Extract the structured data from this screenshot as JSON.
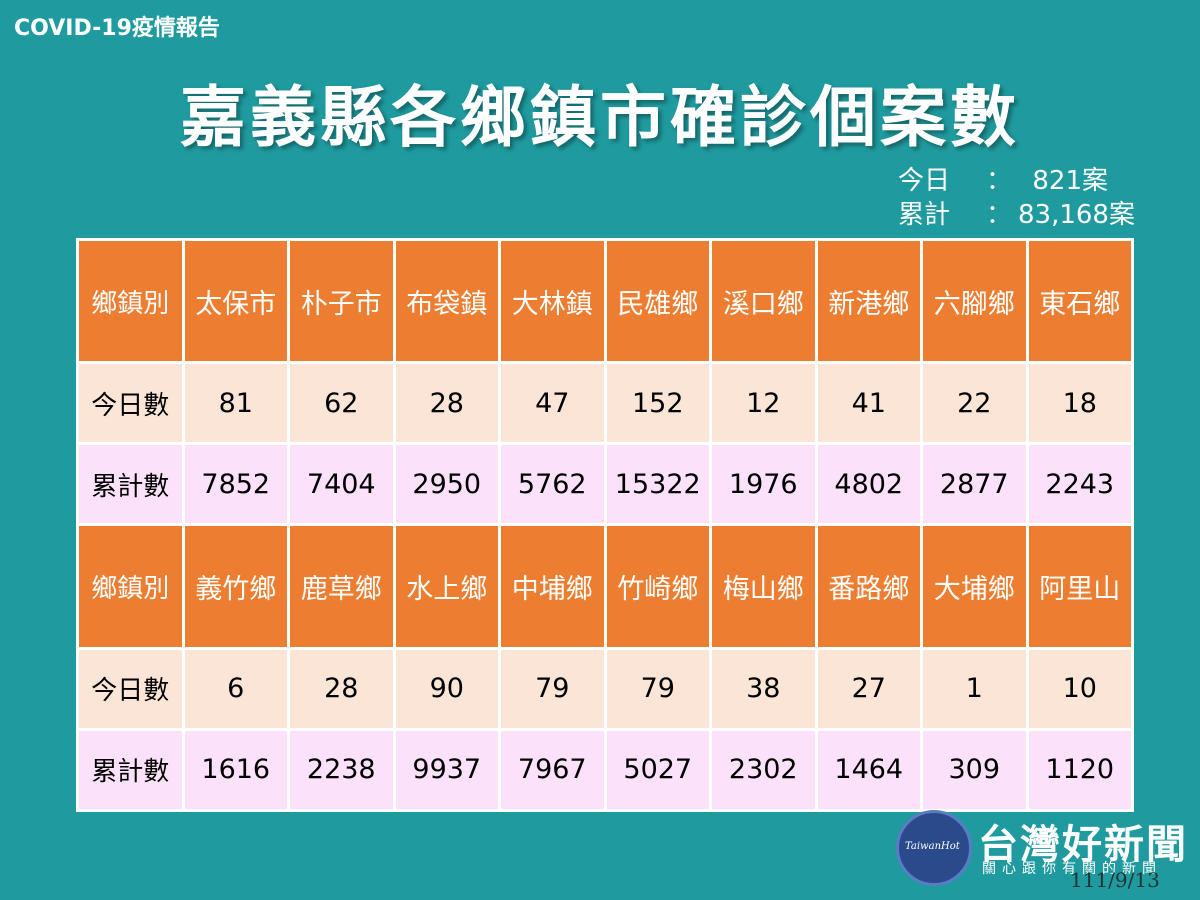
{
  "header_label": "COVID-19疫情報告",
  "title": "嘉義縣各鄉鎮市確診個案數",
  "summary": {
    "today_label": "今日",
    "today_value": "821案",
    "total_label": "累計",
    "total_value": "83,168案",
    "separator": "："
  },
  "row_labels": {
    "township": "鄉鎮別",
    "today": "今日數",
    "cumulative": "累計數"
  },
  "table_blocks": [
    {
      "townships": [
        "太保市",
        "朴子市",
        "布袋鎮",
        "大林鎮",
        "民雄鄉",
        "溪口鄉",
        "新港鄉",
        "六腳鄉",
        "東石鄉"
      ],
      "today": [
        "81",
        "62",
        "28",
        "47",
        "152",
        "12",
        "41",
        "22",
        "18"
      ],
      "cumulative": [
        "7852",
        "7404",
        "2950",
        "5762",
        "15322",
        "1976",
        "4802",
        "2877",
        "2243"
      ]
    },
    {
      "townships": [
        "義竹鄉",
        "鹿草鄉",
        "水上鄉",
        "中埔鄉",
        "竹崎鄉",
        "梅山鄉",
        "番路鄉",
        "大埔鄉",
        "阿里山"
      ],
      "today": [
        "6",
        "28",
        "90",
        "79",
        "79",
        "38",
        "27",
        "1",
        "10"
      ],
      "cumulative": [
        "1616",
        "2238",
        "9937",
        "7967",
        "5027",
        "2302",
        "1464",
        "309",
        "1120"
      ]
    }
  ],
  "watermark": {
    "logo_text": "TaiwanHot",
    "brand": "台灣好新聞",
    "subtitle": "關心跟你有關的新聞"
  },
  "date": "111/9/13",
  "colors": {
    "background": "#1f9b9f",
    "header_cell": "#ec7d31",
    "today_row": "#fbe5d6",
    "cumulative_row": "#fce1fa"
  }
}
